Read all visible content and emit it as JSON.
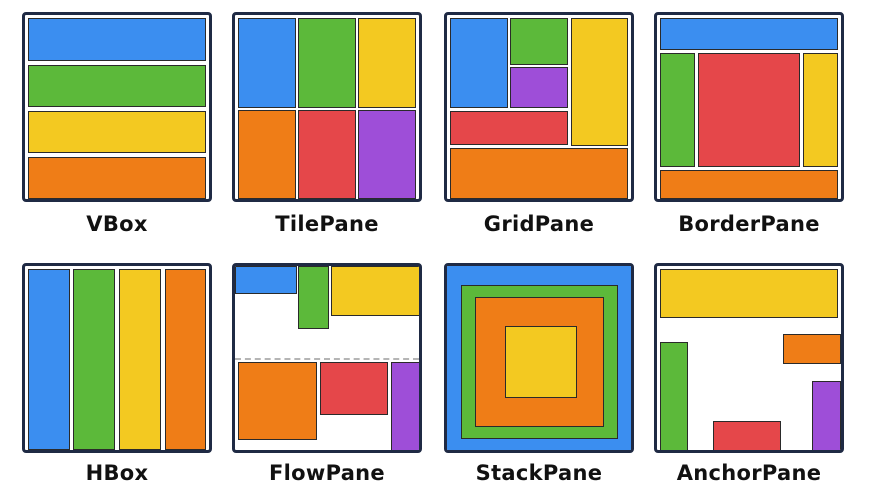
{
  "colors": {
    "blue": "#3b8ef0",
    "green": "#5cb93a",
    "yellow": "#f3c921",
    "orange": "#ef7d17",
    "red": "#e5474a",
    "purple": "#9e4ed8",
    "border": "#1f2a44"
  },
  "layouts": [
    {
      "name": "VBox"
    },
    {
      "name": "TilePane"
    },
    {
      "name": "GridPane"
    },
    {
      "name": "BorderPane"
    },
    {
      "name": "HBox"
    },
    {
      "name": "FlowPane"
    },
    {
      "name": "StackPane"
    },
    {
      "name": "AnchorPane"
    }
  ]
}
